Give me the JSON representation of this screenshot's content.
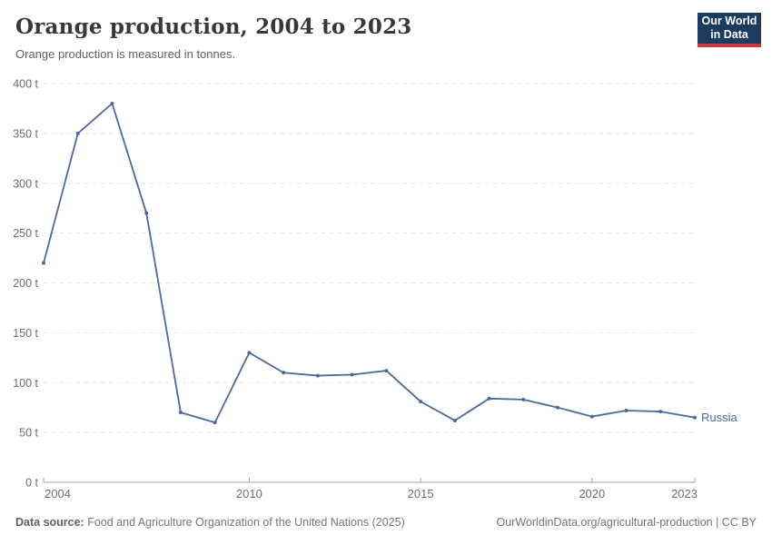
{
  "header": {
    "title": "Orange production, 2004 to 2023",
    "subtitle": "Orange production is measured in tonnes."
  },
  "logo": {
    "line1": "Our World",
    "line2": "in Data",
    "bg_color": "#1d3a5f",
    "accent_color": "#c73a42"
  },
  "chart_data": {
    "type": "line",
    "title": "Orange production, 2004 to 2023",
    "unit": "t",
    "x": [
      2004,
      2005,
      2006,
      2007,
      2008,
      2009,
      2010,
      2011,
      2012,
      2013,
      2014,
      2015,
      2016,
      2017,
      2018,
      2019,
      2020,
      2021,
      2022,
      2023
    ],
    "series": [
      {
        "name": "Russia",
        "color": "#4C6A9C",
        "values": [
          220,
          350,
          380,
          270,
          70,
          60,
          130,
          110,
          107,
          108,
          112,
          81,
          62,
          84,
          83,
          75,
          66,
          72,
          71,
          65
        ]
      }
    ],
    "xlabel": "",
    "ylabel": "",
    "ylim": [
      0,
      400
    ],
    "yticks": [
      0,
      50,
      100,
      150,
      200,
      250,
      300,
      350,
      400
    ],
    "ytick_suffix": " t",
    "xticks": [
      2004,
      2010,
      2015,
      2020,
      2023
    ],
    "grid": true,
    "legend_position": "end-of-line"
  },
  "colors": {
    "grid": "#e4e4e4",
    "axis": "#a3a3a3",
    "tick_label": "#6e6e6e"
  },
  "footer": {
    "source_label": "Data source:",
    "source_text": "Food and Agriculture Organization of the United Nations (2025)",
    "right_text": "OurWorldinData.org/agricultural-production | CC BY"
  }
}
